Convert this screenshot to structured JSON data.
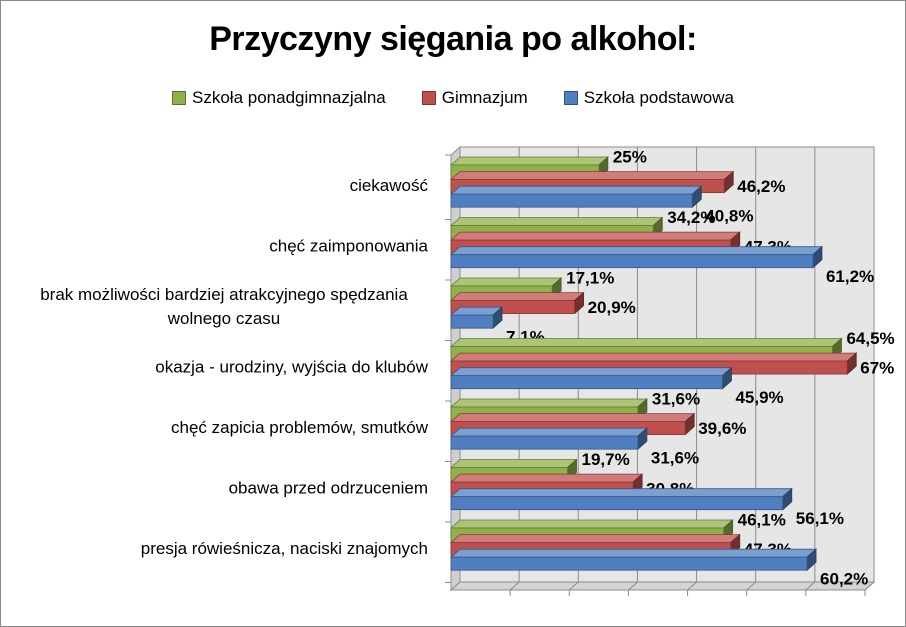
{
  "chart_data": {
    "type": "bar",
    "orientation": "horizontal",
    "title": "Przyczyny sięgania po alkohol:",
    "legend_position": "top",
    "grid": true,
    "xlim": [
      0,
      70
    ],
    "categories": [
      "ciekawość",
      "chęć zaimponowania",
      "brak możliwości bardziej atrakcyjnego spędzania wolnego czasu",
      "okazja - urodziny, wyjścia do klubów",
      "chęć zapicia problemów, smutków",
      "obawa przed odrzuceniem",
      "presja rówieśnicza, naciski znajomych"
    ],
    "category_lines": [
      [
        "ciekawość"
      ],
      [
        "chęć zaimponowania"
      ],
      [
        "brak możliwości bardziej atrakcyjnego spędzania",
        "wolnego czasu"
      ],
      [
        "okazja - urodziny, wyjścia do klubów"
      ],
      [
        "chęć zapicia problemów, smutków"
      ],
      [
        "obawa przed odrzuceniem"
      ],
      [
        "presja rówieśnicza, naciski znajomych"
      ]
    ],
    "series": [
      {
        "name": "Szkoła ponadgimnazjalna",
        "color": "#8fb04a",
        "values": [
          25,
          34.2,
          17.1,
          64.5,
          31.6,
          19.7,
          46.1
        ],
        "labels": [
          "25%",
          "34,2%",
          "17,1%",
          "64,5%",
          "31,6%",
          "19,7%",
          "46,1%"
        ]
      },
      {
        "name": "Gimnazjum",
        "color": "#c0504d",
        "values": [
          46.2,
          47.3,
          20.9,
          67,
          39.6,
          30.8,
          47.3
        ],
        "labels": [
          "46,2%",
          "47,3%",
          "20,9%",
          "67%",
          "39,6%",
          "30,8%",
          "47,3%"
        ]
      },
      {
        "name": "Szkoła podstawowa",
        "color": "#4f7fc0",
        "values": [
          40.8,
          61.2,
          7.1,
          45.9,
          31.6,
          56.1,
          60.2
        ],
        "labels": [
          "40,8%",
          "61,2%",
          "7,1%",
          "45,9%",
          "31,6%",
          "56,1%",
          "60,2%"
        ]
      }
    ]
  }
}
